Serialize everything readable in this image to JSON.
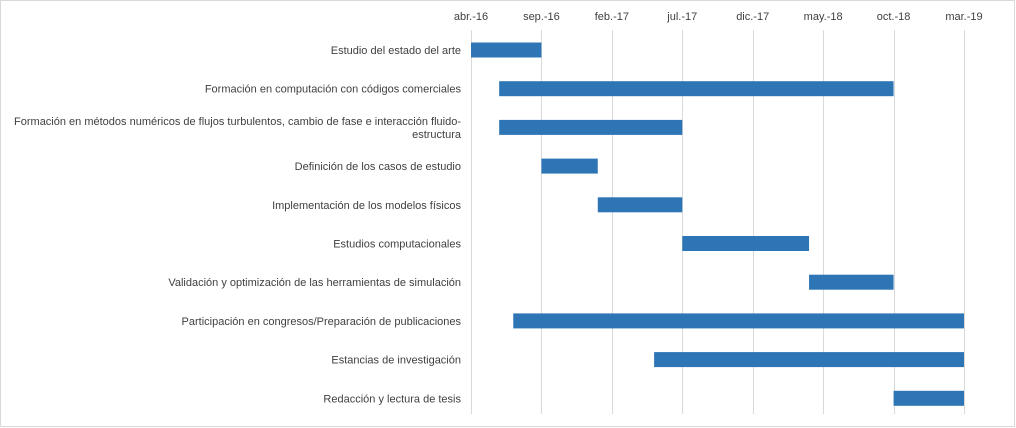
{
  "chart_data": {
    "type": "bar",
    "orientation": "horizontal-gantt",
    "title": "",
    "xlabel": "",
    "ylabel": "",
    "x_axis_position": "top",
    "grid": true,
    "legend": "none",
    "bar_color": "#2E75B6",
    "grid_color": "#d9d9d9",
    "text_color": "#404040",
    "tick_labels": [
      "abr.-16",
      "sep.-16",
      "feb.-17",
      "jul.-17",
      "dic.-17",
      "may.-18",
      "oct.-18",
      "mar.-19"
    ],
    "ticks": [
      "2016-04",
      "2016-09",
      "2017-02",
      "2017-07",
      "2017-12",
      "2018-05",
      "2018-10",
      "2019-03"
    ],
    "xlim": [
      "2016-04",
      "2019-03"
    ],
    "tasks": [
      {
        "label": "Estudio del estado del arte",
        "start": "2016-04",
        "end": "2016-09"
      },
      {
        "label": "Formación en computación con códigos comerciales",
        "start": "2016-06",
        "end": "2018-10"
      },
      {
        "label": "Formación en métodos numéricos de flujos turbulentos, cambio de fase e interacción fluido-estructura",
        "label_lines": [
          "Formación en métodos numéricos de flujos turbulentos, cambio de fase e interacción fluido-",
          "estructura"
        ],
        "start": "2016-06",
        "end": "2017-07"
      },
      {
        "label": "Definición de los casos de estudio",
        "start": "2016-09",
        "end": "2017-01"
      },
      {
        "label": "Implementación de los modelos físicos",
        "start": "2017-01",
        "end": "2017-07"
      },
      {
        "label": "Estudios computacionales",
        "start": "2017-07",
        "end": "2018-04"
      },
      {
        "label": "Validación y optimización de las herramientas de simulación",
        "start": "2018-04",
        "end": "2018-10"
      },
      {
        "label": "Participación en congresos/Preparación de publicaciones",
        "start": "2016-07",
        "end": "2019-03"
      },
      {
        "label": "Estancias de investigación",
        "start": "2017-05",
        "end": "2019-03"
      },
      {
        "label": "Redacción y lectura de tesis",
        "start": "2018-10",
        "end": "2019-03"
      }
    ]
  }
}
